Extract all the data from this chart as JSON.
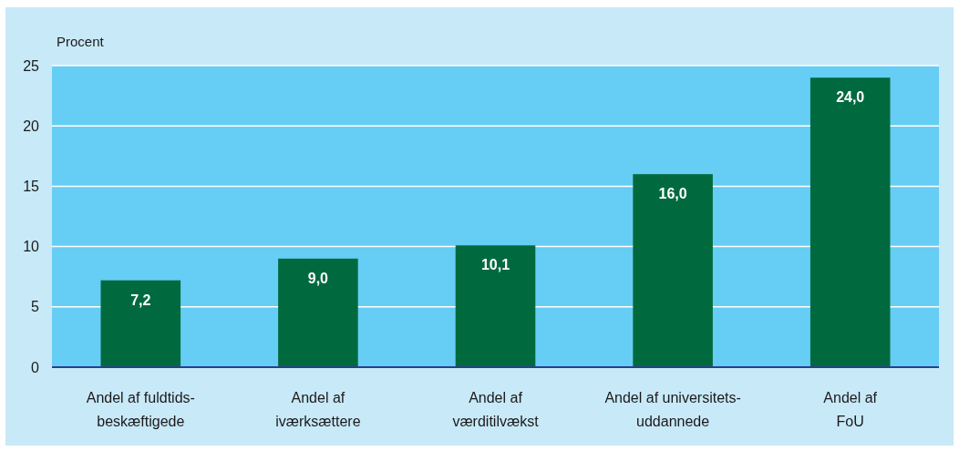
{
  "chart_data": {
    "type": "bar",
    "ylabel": "Procent",
    "categories": [
      "Andel af fuldtids-\nbeskæftigede",
      "Andel af\niværksættere",
      "Andel af\nværditilvækst",
      "Andel af universitets-\nuddannede",
      "Andel af\nFoU"
    ],
    "values": [
      7.2,
      9.0,
      10.1,
      16.0,
      24.0
    ],
    "value_labels": [
      "7,2",
      "9,0",
      "10,1",
      "16,0",
      "24,0"
    ],
    "color": "#006a3e",
    "ylim": [
      0,
      25
    ],
    "yticks": [
      0,
      5,
      10,
      15,
      20,
      25
    ],
    "grid": "y"
  }
}
